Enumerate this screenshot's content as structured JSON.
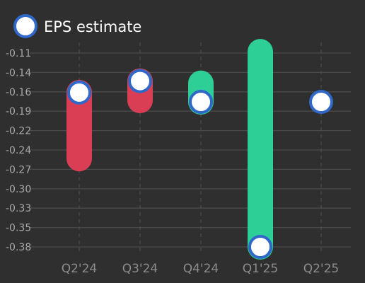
{
  "chart_data": {
    "type": "scatter",
    "legend": {
      "label": "EPS estimate",
      "position": "top-left"
    },
    "categories": [
      "Q2'24",
      "Q3'24",
      "Q4'24",
      "Q1'25",
      "Q2'25"
    ],
    "y_ticks": [
      "-0.11",
      "-0.14",
      "-0.16",
      "-0.19",
      "-0.22",
      "-0.24",
      "-0.27",
      "-0.30",
      "-0.33",
      "-0.35",
      "-0.38"
    ],
    "ylim": [
      -0.38,
      -0.11
    ],
    "grid": true,
    "series": [
      {
        "name": "EPS estimate",
        "values": [
          -0.165,
          -0.149,
          -0.178,
          -0.38,
          -0.178
        ]
      }
    ],
    "actuals": [
      -0.257,
      -0.176,
      -0.152,
      -0.108,
      null
    ],
    "colors": {
      "background": "#2f2f2f",
      "estimate_fill": "#ffffff",
      "estimate_stroke": "#2f68c9",
      "beat": "#2ecf96",
      "miss": "#da3e55",
      "grid": "#4a4a4a"
    }
  }
}
